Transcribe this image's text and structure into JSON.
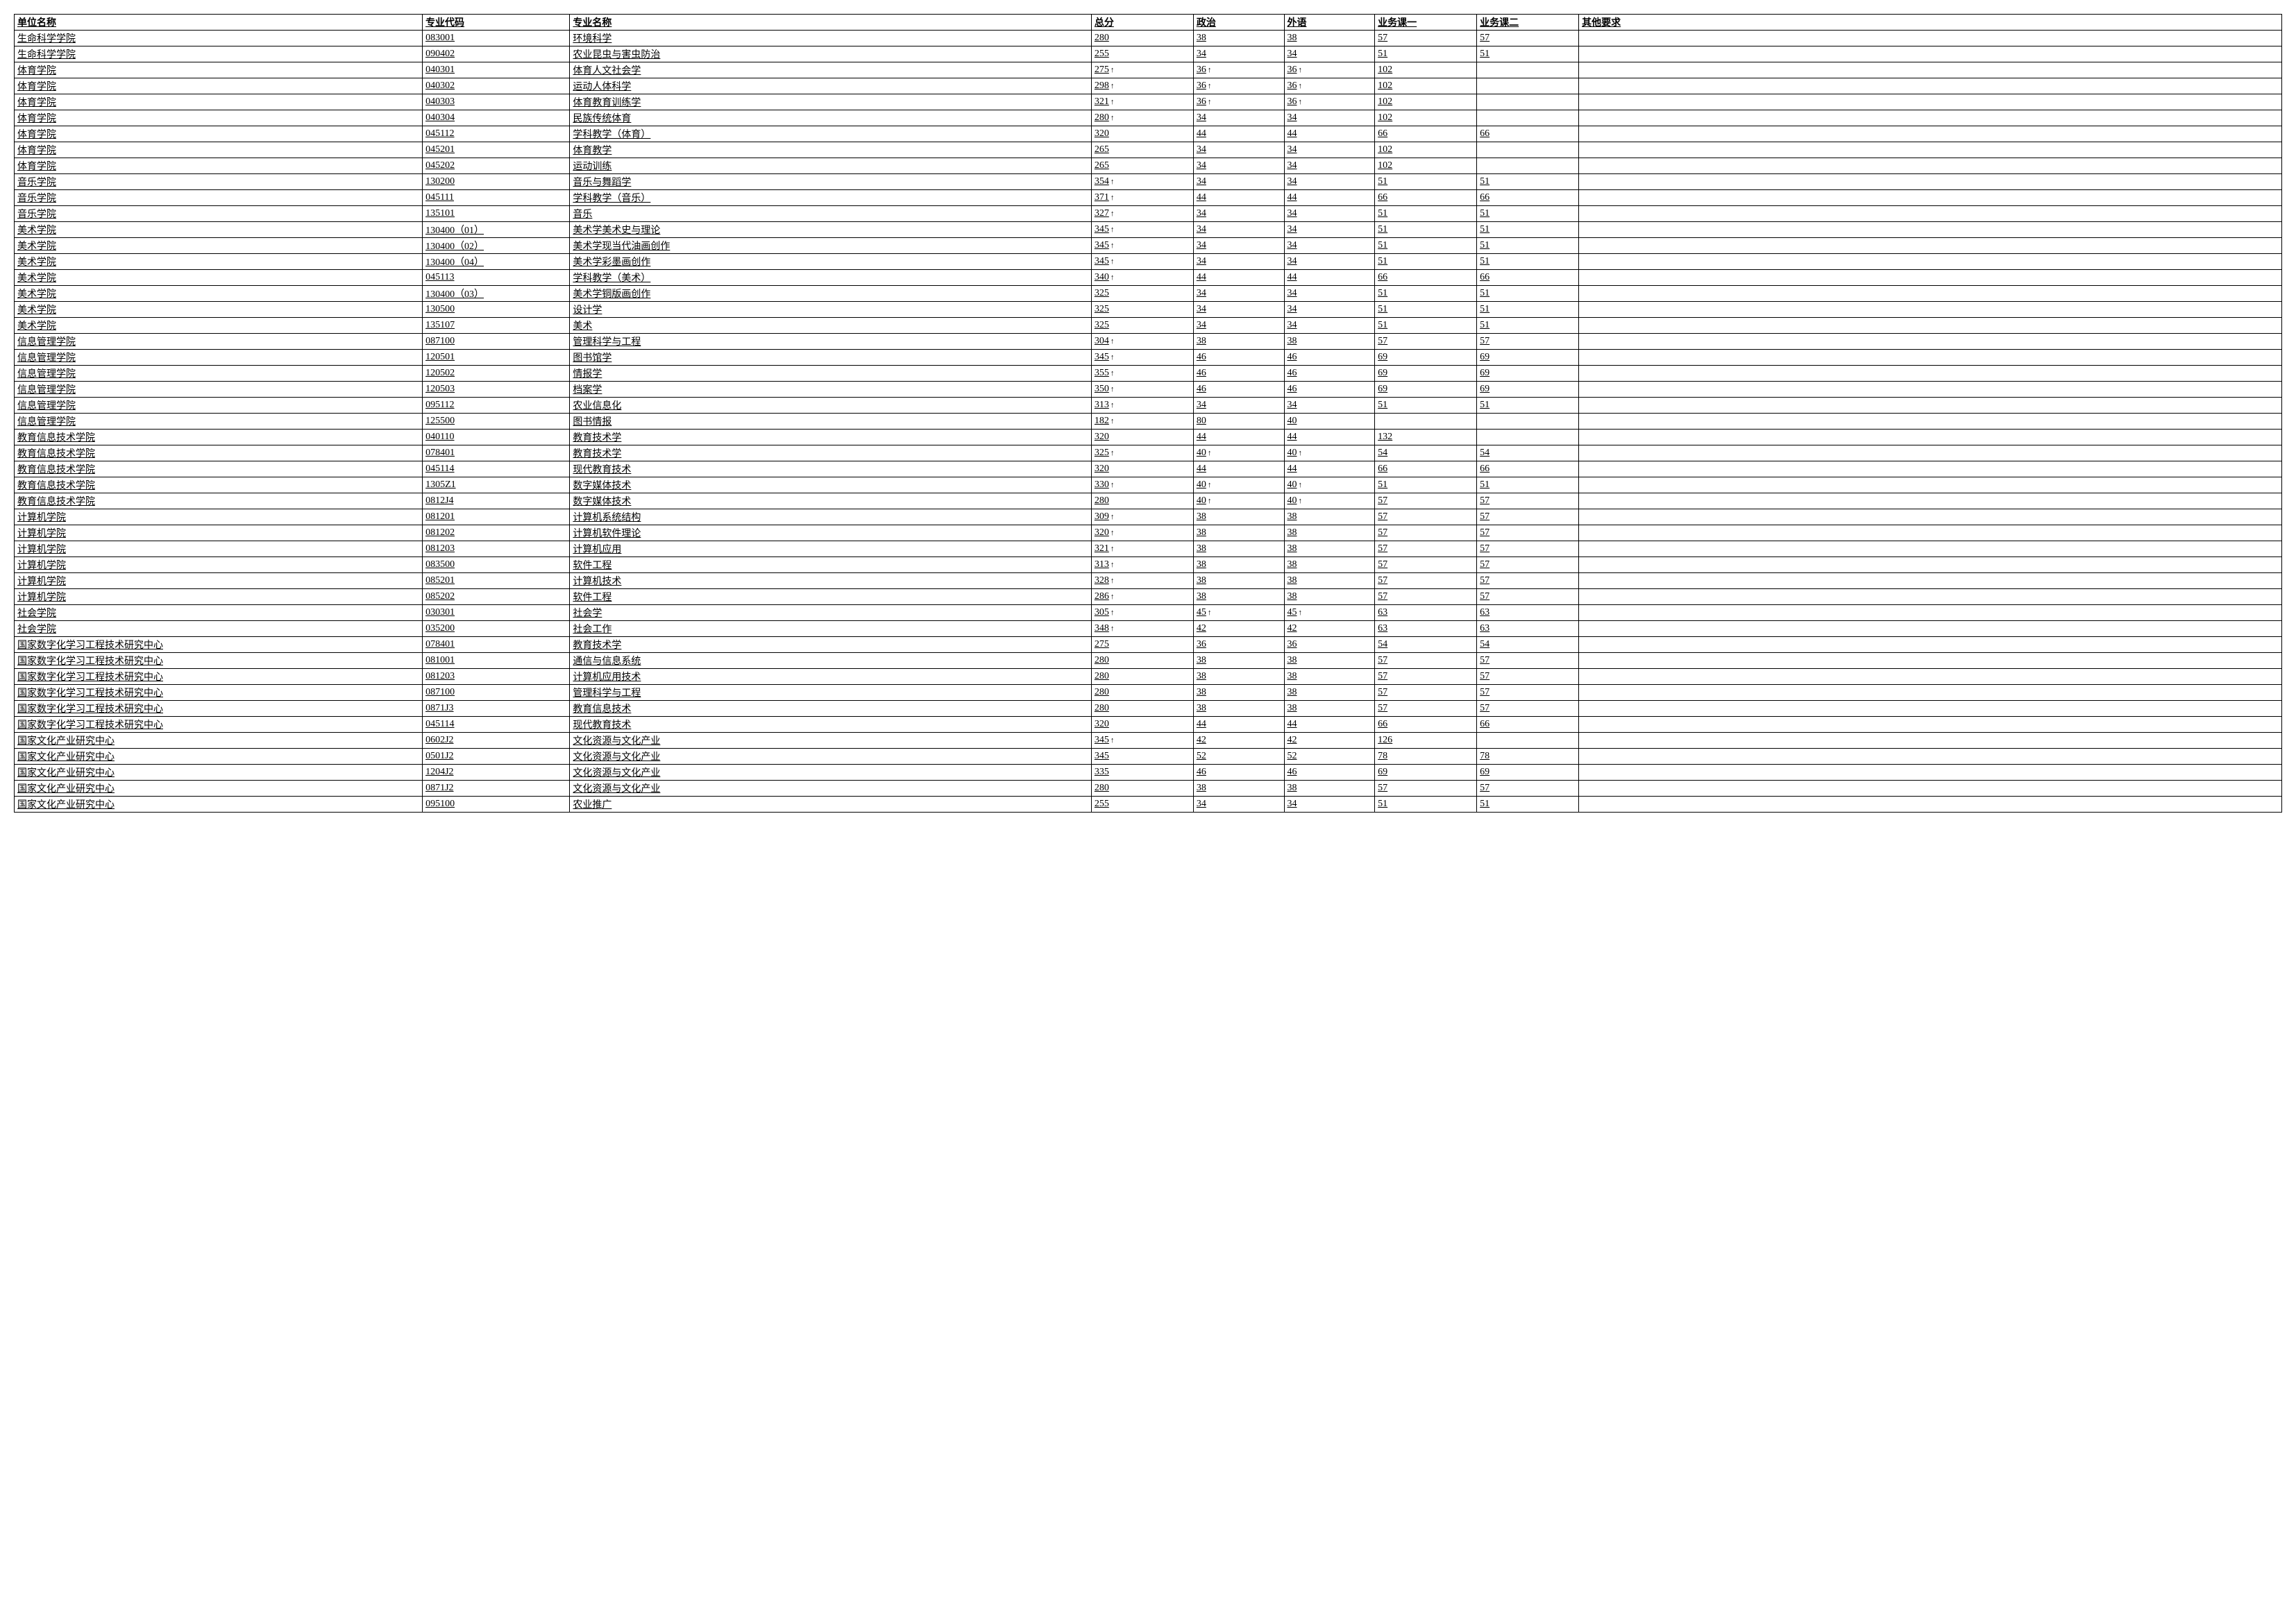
{
  "headers": {
    "unit": "单位名称",
    "code": "专业代码",
    "name": "专业名称",
    "total": "总分",
    "politics": "政治",
    "foreign": "外语",
    "biz1": "业务课一",
    "biz2": "业务课二",
    "other": "其他要求"
  },
  "arrow": "↑",
  "rows": [
    {
      "unit": "生命科学学院",
      "code": "083001",
      "name": "环境科学",
      "total": "280",
      "ta": false,
      "pol": "38",
      "pa": false,
      "lang": "38",
      "la": false,
      "b1": "57",
      "b2": "57",
      "other": ""
    },
    {
      "unit": "生命科学学院",
      "code": "090402",
      "name": "农业昆虫与害虫防治",
      "total": "255",
      "ta": false,
      "pol": "34",
      "pa": false,
      "lang": "34",
      "la": false,
      "b1": "51",
      "b2": "51",
      "other": ""
    },
    {
      "unit": "体育学院",
      "code": "040301",
      "name": "体育人文社会学",
      "total": "275",
      "ta": true,
      "pol": "36",
      "pa": true,
      "lang": "36",
      "la": true,
      "b1": "102",
      "b2": "",
      "other": ""
    },
    {
      "unit": "体育学院",
      "code": "040302",
      "name": "运动人体科学",
      "total": "298",
      "ta": true,
      "pol": "36",
      "pa": true,
      "lang": "36",
      "la": true,
      "b1": "102",
      "b2": "",
      "other": ""
    },
    {
      "unit": "体育学院",
      "code": "040303",
      "name": "体育教育训练学",
      "total": "321",
      "ta": true,
      "pol": "36",
      "pa": true,
      "lang": "36",
      "la": true,
      "b1": "102",
      "b2": "",
      "other": ""
    },
    {
      "unit": "体育学院",
      "code": "040304",
      "name": "民族传统体育",
      "total": "280",
      "ta": true,
      "pol": "34",
      "pa": false,
      "lang": "34",
      "la": false,
      "b1": "102",
      "b2": "",
      "other": ""
    },
    {
      "unit": "体育学院",
      "code": "045112",
      "name": "学科教学（体育）",
      "total": "320",
      "ta": false,
      "pol": "44",
      "pa": false,
      "lang": "44",
      "la": false,
      "b1": "66",
      "b2": "66",
      "other": ""
    },
    {
      "unit": "体育学院",
      "code": "045201",
      "name": "体育教学",
      "total": "265",
      "ta": false,
      "pol": "34",
      "pa": false,
      "lang": "34",
      "la": false,
      "b1": "102",
      "b2": "",
      "other": ""
    },
    {
      "unit": "体育学院",
      "code": "045202",
      "name": "运动训练",
      "total": "265",
      "ta": false,
      "pol": "34",
      "pa": false,
      "lang": "34",
      "la": false,
      "b1": "102",
      "b2": "",
      "other": ""
    },
    {
      "unit": "音乐学院",
      "code": "130200",
      "name": "音乐与舞蹈学",
      "total": "354",
      "ta": true,
      "pol": "34",
      "pa": false,
      "lang": "34",
      "la": false,
      "b1": "51",
      "b2": "51",
      "other": ""
    },
    {
      "unit": "音乐学院",
      "code": "045111",
      "name": "学科教学（音乐）",
      "total": "371",
      "ta": true,
      "pol": "44",
      "pa": false,
      "lang": "44",
      "la": false,
      "b1": "66",
      "b2": "66",
      "other": ""
    },
    {
      "unit": "音乐学院",
      "code": "135101",
      "name": "音乐",
      "total": "327",
      "ta": true,
      "pol": "34",
      "pa": false,
      "lang": "34",
      "la": false,
      "b1": "51",
      "b2": "51",
      "other": ""
    },
    {
      "unit": "美术学院",
      "code": "130400（01）",
      "name": "美术学美术史与理论",
      "total": "345",
      "ta": true,
      "pol": "34",
      "pa": false,
      "lang": "34",
      "la": false,
      "b1": "51",
      "b2": "51",
      "other": ""
    },
    {
      "unit": "美术学院",
      "code": "130400（02）",
      "name": "美术学现当代油画创作",
      "total": "345",
      "ta": true,
      "pol": "34",
      "pa": false,
      "lang": "34",
      "la": false,
      "b1": "51",
      "b2": "51",
      "other": ""
    },
    {
      "unit": "美术学院",
      "code": "130400（04）",
      "name": "美术学彩墨画创作",
      "total": "345",
      "ta": true,
      "pol": "34",
      "pa": false,
      "lang": "34",
      "la": false,
      "b1": "51",
      "b2": "51",
      "other": ""
    },
    {
      "unit": "美术学院",
      "code": "045113",
      "name": "学科教学（美术）",
      "total": "340",
      "ta": true,
      "pol": "44",
      "pa": false,
      "lang": "44",
      "la": false,
      "b1": "66",
      "b2": "66",
      "other": ""
    },
    {
      "unit": "美术学院",
      "code": "130400（03）",
      "name": "美术学铜版画创作",
      "total": "325",
      "ta": false,
      "pol": "34",
      "pa": false,
      "lang": "34",
      "la": false,
      "b1": "51",
      "b2": "51",
      "other": ""
    },
    {
      "unit": "美术学院",
      "code": "130500",
      "name": "设计学",
      "total": "325",
      "ta": false,
      "pol": "34",
      "pa": false,
      "lang": "34",
      "la": false,
      "b1": "51",
      "b2": "51",
      "other": ""
    },
    {
      "unit": "美术学院",
      "code": "135107",
      "name": "美术",
      "total": "325",
      "ta": false,
      "pol": "34",
      "pa": false,
      "lang": "34",
      "la": false,
      "b1": "51",
      "b2": "51",
      "other": ""
    },
    {
      "unit": "信息管理学院",
      "code": "087100",
      "name": "管理科学与工程",
      "total": "304",
      "ta": true,
      "pol": "38",
      "pa": false,
      "lang": "38",
      "la": false,
      "b1": "57",
      "b2": "57",
      "other": ""
    },
    {
      "unit": "信息管理学院",
      "code": "120501",
      "name": "图书馆学",
      "total": "345",
      "ta": true,
      "pol": "46",
      "pa": false,
      "lang": "46",
      "la": false,
      "b1": "69",
      "b2": "69",
      "other": ""
    },
    {
      "unit": "信息管理学院",
      "code": "120502",
      "name": "情报学",
      "total": "355",
      "ta": true,
      "pol": "46",
      "pa": false,
      "lang": "46",
      "la": false,
      "b1": "69",
      "b2": "69",
      "other": ""
    },
    {
      "unit": "信息管理学院",
      "code": "120503",
      "name": "档案学",
      "total": "350",
      "ta": true,
      "pol": "46",
      "pa": false,
      "lang": "46",
      "la": false,
      "b1": "69",
      "b2": "69",
      "other": ""
    },
    {
      "unit": "信息管理学院",
      "code": "095112",
      "name": "农业信息化",
      "total": "313",
      "ta": true,
      "pol": "34",
      "pa": false,
      "lang": "34",
      "la": false,
      "b1": "51",
      "b2": "51",
      "other": ""
    },
    {
      "unit": "信息管理学院",
      "code": "125500",
      "name": "图书情报",
      "total": "182",
      "ta": true,
      "pol": "80",
      "pa": false,
      "lang": "40",
      "la": false,
      "b1": "",
      "b2": "",
      "other": ""
    },
    {
      "unit": "教育信息技术学院",
      "code": "040110",
      "name": "教育技术学",
      "total": "320",
      "ta": false,
      "pol": "44",
      "pa": false,
      "lang": "44",
      "la": false,
      "b1": "132",
      "b2": "",
      "other": ""
    },
    {
      "unit": "教育信息技术学院",
      "code": "078401",
      "name": "教育技术学",
      "total": "325",
      "ta": true,
      "pol": "40",
      "pa": true,
      "lang": "40",
      "la": true,
      "b1": "54",
      "b2": "54",
      "other": ""
    },
    {
      "unit": "教育信息技术学院",
      "code": "045114",
      "name": "现代教育技术",
      "total": "320",
      "ta": false,
      "pol": "44",
      "pa": false,
      "lang": "44",
      "la": false,
      "b1": "66",
      "b2": "66",
      "other": ""
    },
    {
      "unit": "教育信息技术学院",
      "code": "1305Z1",
      "name": "数字媒体技术",
      "total": "330",
      "ta": true,
      "pol": "40",
      "pa": true,
      "lang": "40",
      "la": true,
      "b1": "51",
      "b2": "51",
      "other": ""
    },
    {
      "unit": "教育信息技术学院",
      "code": "0812J4",
      "name": "数字媒体技术",
      "total": "280",
      "ta": false,
      "pol": "40",
      "pa": true,
      "lang": "40",
      "la": true,
      "b1": "57",
      "b2": "57",
      "other": ""
    },
    {
      "unit": "计算机学院",
      "code": "081201",
      "name": "计算机系统结构",
      "total": "309",
      "ta": true,
      "pol": "38",
      "pa": false,
      "lang": "38",
      "la": false,
      "b1": "57",
      "b2": "57",
      "other": ""
    },
    {
      "unit": "计算机学院",
      "code": "081202",
      "name": "计算机软件理论",
      "total": "320",
      "ta": true,
      "pol": "38",
      "pa": false,
      "lang": "38",
      "la": false,
      "b1": "57",
      "b2": "57",
      "other": ""
    },
    {
      "unit": "计算机学院",
      "code": "081203",
      "name": "计算机应用",
      "total": "321",
      "ta": true,
      "pol": "38",
      "pa": false,
      "lang": "38",
      "la": false,
      "b1": "57",
      "b2": "57",
      "other": ""
    },
    {
      "unit": "计算机学院",
      "code": "083500",
      "name": "软件工程",
      "total": "313",
      "ta": true,
      "pol": "38",
      "pa": false,
      "lang": "38",
      "la": false,
      "b1": "57",
      "b2": "57",
      "other": ""
    },
    {
      "unit": "计算机学院",
      "code": "085201",
      "name": "计算机技术",
      "total": "328",
      "ta": true,
      "pol": "38",
      "pa": false,
      "lang": "38",
      "la": false,
      "b1": "57",
      "b2": "57",
      "other": ""
    },
    {
      "unit": "计算机学院",
      "code": "085202",
      "name": "软件工程",
      "total": "286",
      "ta": true,
      "pol": "38",
      "pa": false,
      "lang": "38",
      "la": false,
      "b1": "57",
      "b2": "57",
      "other": ""
    },
    {
      "unit": "社会学院",
      "code": "030301",
      "name": "社会学",
      "total": "305",
      "ta": true,
      "pol": "45",
      "pa": true,
      "lang": "45",
      "la": true,
      "b1": "63",
      "b2": "63",
      "other": ""
    },
    {
      "unit": "社会学院",
      "code": "035200",
      "name": "社会工作",
      "total": "348",
      "ta": true,
      "pol": "42",
      "pa": false,
      "lang": "42",
      "la": false,
      "b1": "63",
      "b2": "63",
      "other": ""
    },
    {
      "unit": "国家数字化学习工程技术研究中心",
      "code": "078401",
      "name": "教育技术学",
      "total": "275",
      "ta": false,
      "pol": "36",
      "pa": false,
      "lang": "36",
      "la": false,
      "b1": "54",
      "b2": "54",
      "other": ""
    },
    {
      "unit": "国家数字化学习工程技术研究中心",
      "code": "081001",
      "name": "通信与信息系统",
      "total": "280",
      "ta": false,
      "pol": "38",
      "pa": false,
      "lang": "38",
      "la": false,
      "b1": "57",
      "b2": "57",
      "other": ""
    },
    {
      "unit": "国家数字化学习工程技术研究中心",
      "code": "081203",
      "name": "计算机应用技术",
      "total": "280",
      "ta": false,
      "pol": "38",
      "pa": false,
      "lang": "38",
      "la": false,
      "b1": "57",
      "b2": "57",
      "other": ""
    },
    {
      "unit": "国家数字化学习工程技术研究中心",
      "code": "087100",
      "name": "管理科学与工程",
      "total": "280",
      "ta": false,
      "pol": "38",
      "pa": false,
      "lang": "38",
      "la": false,
      "b1": "57",
      "b2": "57",
      "other": ""
    },
    {
      "unit": "国家数字化学习工程技术研究中心",
      "code": "0871J3",
      "name": "教育信息技术",
      "total": "280",
      "ta": false,
      "pol": "38",
      "pa": false,
      "lang": "38",
      "la": false,
      "b1": "57",
      "b2": "57",
      "other": ""
    },
    {
      "unit": "国家数字化学习工程技术研究中心",
      "code": "045114",
      "name": "现代教育技术",
      "total": "320",
      "ta": false,
      "pol": "44",
      "pa": false,
      "lang": "44",
      "la": false,
      "b1": "66",
      "b2": "66",
      "other": ""
    },
    {
      "unit": "国家文化产业研究中心",
      "code": "0602J2",
      "name": "文化资源与文化产业",
      "total": "345",
      "ta": true,
      "pol": "42",
      "pa": false,
      "lang": "42",
      "la": false,
      "b1": "126",
      "b2": "",
      "other": ""
    },
    {
      "unit": "国家文化产业研究中心",
      "code": "0501J2",
      "name": "文化资源与文化产业",
      "total": "345",
      "ta": false,
      "pol": "52",
      "pa": false,
      "lang": "52",
      "la": false,
      "b1": "78",
      "b2": "78",
      "other": ""
    },
    {
      "unit": "国家文化产业研究中心",
      "code": "1204J2",
      "name": "文化资源与文化产业",
      "total": "335",
      "ta": false,
      "pol": "46",
      "pa": false,
      "lang": "46",
      "la": false,
      "b1": "69",
      "b2": "69",
      "other": ""
    },
    {
      "unit": "国家文化产业研究中心",
      "code": "0871J2",
      "name": "文化资源与文化产业",
      "total": "280",
      "ta": false,
      "pol": "38",
      "pa": false,
      "lang": "38",
      "la": false,
      "b1": "57",
      "b2": "57",
      "other": ""
    },
    {
      "unit": "国家文化产业研究中心",
      "code": "095100",
      "name": "农业推广",
      "total": "255",
      "ta": false,
      "pol": "34",
      "pa": false,
      "lang": "34",
      "la": false,
      "b1": "51",
      "b2": "51",
      "other": ""
    }
  ],
  "style": {
    "border_color": "#000000",
    "bg_color": "#ffffff",
    "text_color": "#000000",
    "font_size": 14,
    "header_weight": "bold"
  }
}
